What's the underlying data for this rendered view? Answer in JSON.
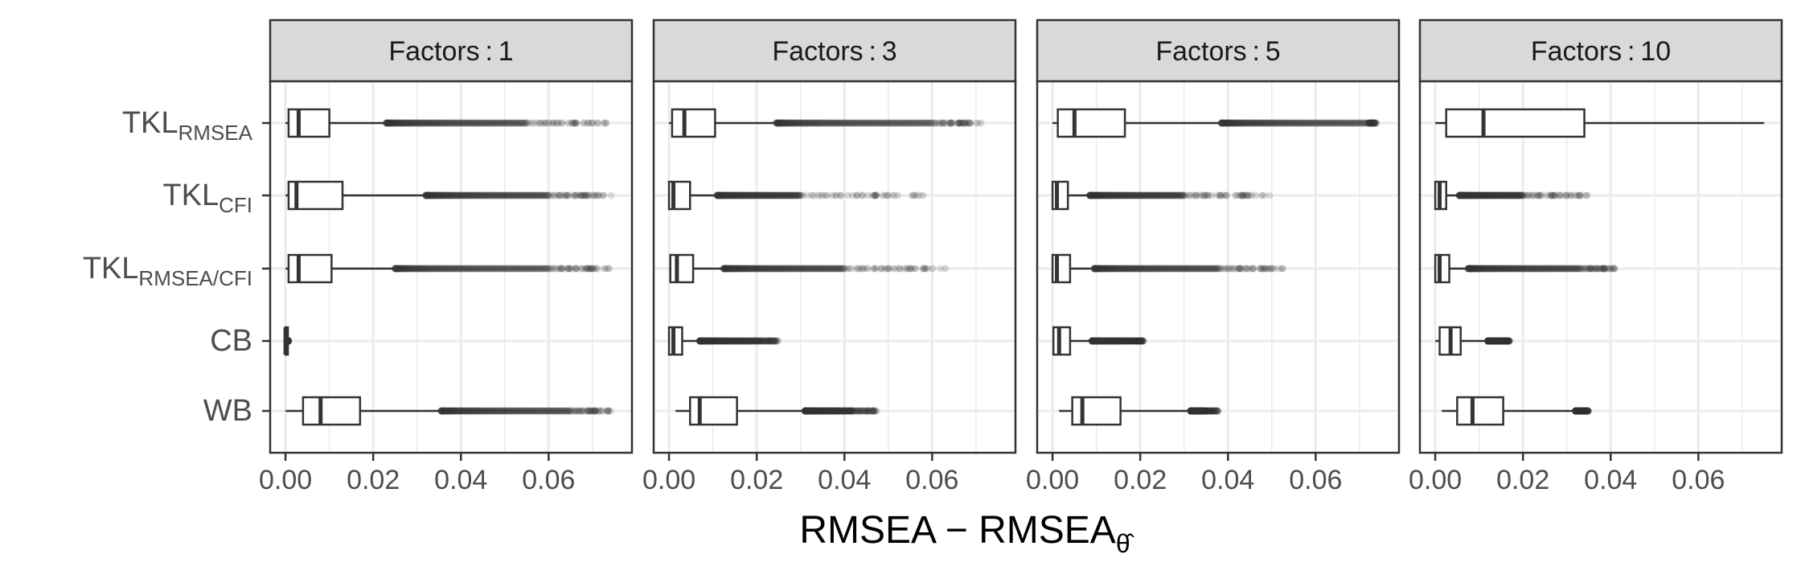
{
  "chart_data": {
    "type": "boxplot",
    "facet_label_prefix": "Factors",
    "xlabel_main": "RMSEA − RMSEA",
    "xlabel_subscript": "θ̂",
    "xlim": [
      -0.0035,
      0.079
    ],
    "x_ticks": [
      0,
      0.02,
      0.04,
      0.06
    ],
    "x_tick_labels": [
      "0.00",
      "0.02",
      "0.04",
      "0.06"
    ],
    "categories": [
      {
        "main": "TKL",
        "sub": "RMSEA"
      },
      {
        "main": "TKL",
        "sub": "CFI"
      },
      {
        "main": "TKL",
        "sub": "RMSEA/CFI"
      },
      {
        "main": "CB",
        "sub": ""
      },
      {
        "main": "WB",
        "sub": ""
      }
    ],
    "colors": {
      "strip_fill": "#d9d9d9",
      "panel_border": "#333333",
      "grid": "#ebebeb",
      "box": "#333333",
      "outlier": "#333333"
    },
    "facets": [
      {
        "factors": "1",
        "boxes": [
          {
            "wmin": 0.0,
            "q1": 0.0007,
            "med": 0.003,
            "q3": 0.01,
            "wmax": 0.023,
            "out_min": 0.023,
            "out_dense": 0.055,
            "out_max": 0.075
          },
          {
            "wmin": 0.0,
            "q1": 0.0007,
            "med": 0.0025,
            "q3": 0.013,
            "wmax": 0.032,
            "out_min": 0.032,
            "out_dense": 0.06,
            "out_max": 0.075
          },
          {
            "wmin": 0.0,
            "q1": 0.0007,
            "med": 0.003,
            "q3": 0.0105,
            "wmax": 0.025,
            "out_min": 0.025,
            "out_dense": 0.06,
            "out_max": 0.075
          },
          {
            "wmin": 0.0,
            "q1": 0.0,
            "med": 0.0,
            "q3": 0.0004,
            "wmax": 0.0006,
            "out_min": 0.0006,
            "out_dense": 0.0006,
            "out_max": 0.0006
          },
          {
            "wmin": 0.0,
            "q1": 0.004,
            "med": 0.008,
            "q3": 0.017,
            "wmax": 0.0355,
            "out_min": 0.0355,
            "out_dense": 0.065,
            "out_max": 0.075
          }
        ]
      },
      {
        "factors": "3",
        "boxes": [
          {
            "wmin": 0.0,
            "q1": 0.0007,
            "med": 0.0035,
            "q3": 0.0105,
            "wmax": 0.0245,
            "out_min": 0.0245,
            "out_dense": 0.06,
            "out_max": 0.072
          },
          {
            "wmin": 0.0,
            "q1": 0.0,
            "med": 0.001,
            "q3": 0.0048,
            "wmax": 0.011,
            "out_min": 0.011,
            "out_dense": 0.03,
            "out_max": 0.06
          },
          {
            "wmin": 0.0,
            "q1": 0.0003,
            "med": 0.0018,
            "q3": 0.0055,
            "wmax": 0.0125,
            "out_min": 0.0125,
            "out_dense": 0.04,
            "out_max": 0.064
          },
          {
            "wmin": 0.0,
            "q1": 0.0,
            "med": 0.001,
            "q3": 0.003,
            "wmax": 0.007,
            "out_min": 0.007,
            "out_dense": 0.021,
            "out_max": 0.025
          },
          {
            "wmin": 0.0015,
            "q1": 0.0048,
            "med": 0.007,
            "q3": 0.0155,
            "wmax": 0.031,
            "out_min": 0.031,
            "out_dense": 0.042,
            "out_max": 0.048
          }
        ]
      },
      {
        "factors": "5",
        "boxes": [
          {
            "wmin": 0.0,
            "q1": 0.0012,
            "med": 0.005,
            "q3": 0.0165,
            "wmax": 0.0385,
            "out_min": 0.0385,
            "out_dense": 0.072,
            "out_max": 0.074
          },
          {
            "wmin": 0.0,
            "q1": 0.0,
            "med": 0.001,
            "q3": 0.0035,
            "wmax": 0.0085,
            "out_min": 0.0085,
            "out_dense": 0.03,
            "out_max": 0.051
          },
          {
            "wmin": 0.0,
            "q1": 0.0,
            "med": 0.001,
            "q3": 0.004,
            "wmax": 0.0095,
            "out_min": 0.0095,
            "out_dense": 0.038,
            "out_max": 0.054
          },
          {
            "wmin": 0.0,
            "q1": 0.0002,
            "med": 0.0015,
            "q3": 0.004,
            "wmax": 0.009,
            "out_min": 0.009,
            "out_dense": 0.019,
            "out_max": 0.021
          },
          {
            "wmin": 0.0015,
            "q1": 0.0045,
            "med": 0.0068,
            "q3": 0.0155,
            "wmax": 0.0315,
            "out_min": 0.0315,
            "out_dense": 0.035,
            "out_max": 0.038
          }
        ]
      },
      {
        "factors": "10",
        "boxes": [
          {
            "wmin": 0.0,
            "q1": 0.0025,
            "med": 0.011,
            "q3": 0.034,
            "wmax": 0.075,
            "out_min": null,
            "out_dense": null,
            "out_max": null
          },
          {
            "wmin": 0.0,
            "q1": 0.0,
            "med": 0.001,
            "q3": 0.0025,
            "wmax": 0.0055,
            "out_min": 0.0055,
            "out_dense": 0.02,
            "out_max": 0.036
          },
          {
            "wmin": 0.0,
            "q1": 0.0,
            "med": 0.001,
            "q3": 0.0032,
            "wmax": 0.0075,
            "out_min": 0.0075,
            "out_dense": 0.033,
            "out_max": 0.042
          },
          {
            "wmin": 0.0,
            "q1": 0.001,
            "med": 0.0035,
            "q3": 0.0058,
            "wmax": 0.012,
            "out_min": 0.012,
            "out_dense": 0.016,
            "out_max": 0.017
          },
          {
            "wmin": 0.0015,
            "q1": 0.005,
            "med": 0.0085,
            "q3": 0.0155,
            "wmax": 0.032,
            "out_min": 0.032,
            "out_dense": 0.034,
            "out_max": 0.035
          }
        ]
      }
    ]
  }
}
